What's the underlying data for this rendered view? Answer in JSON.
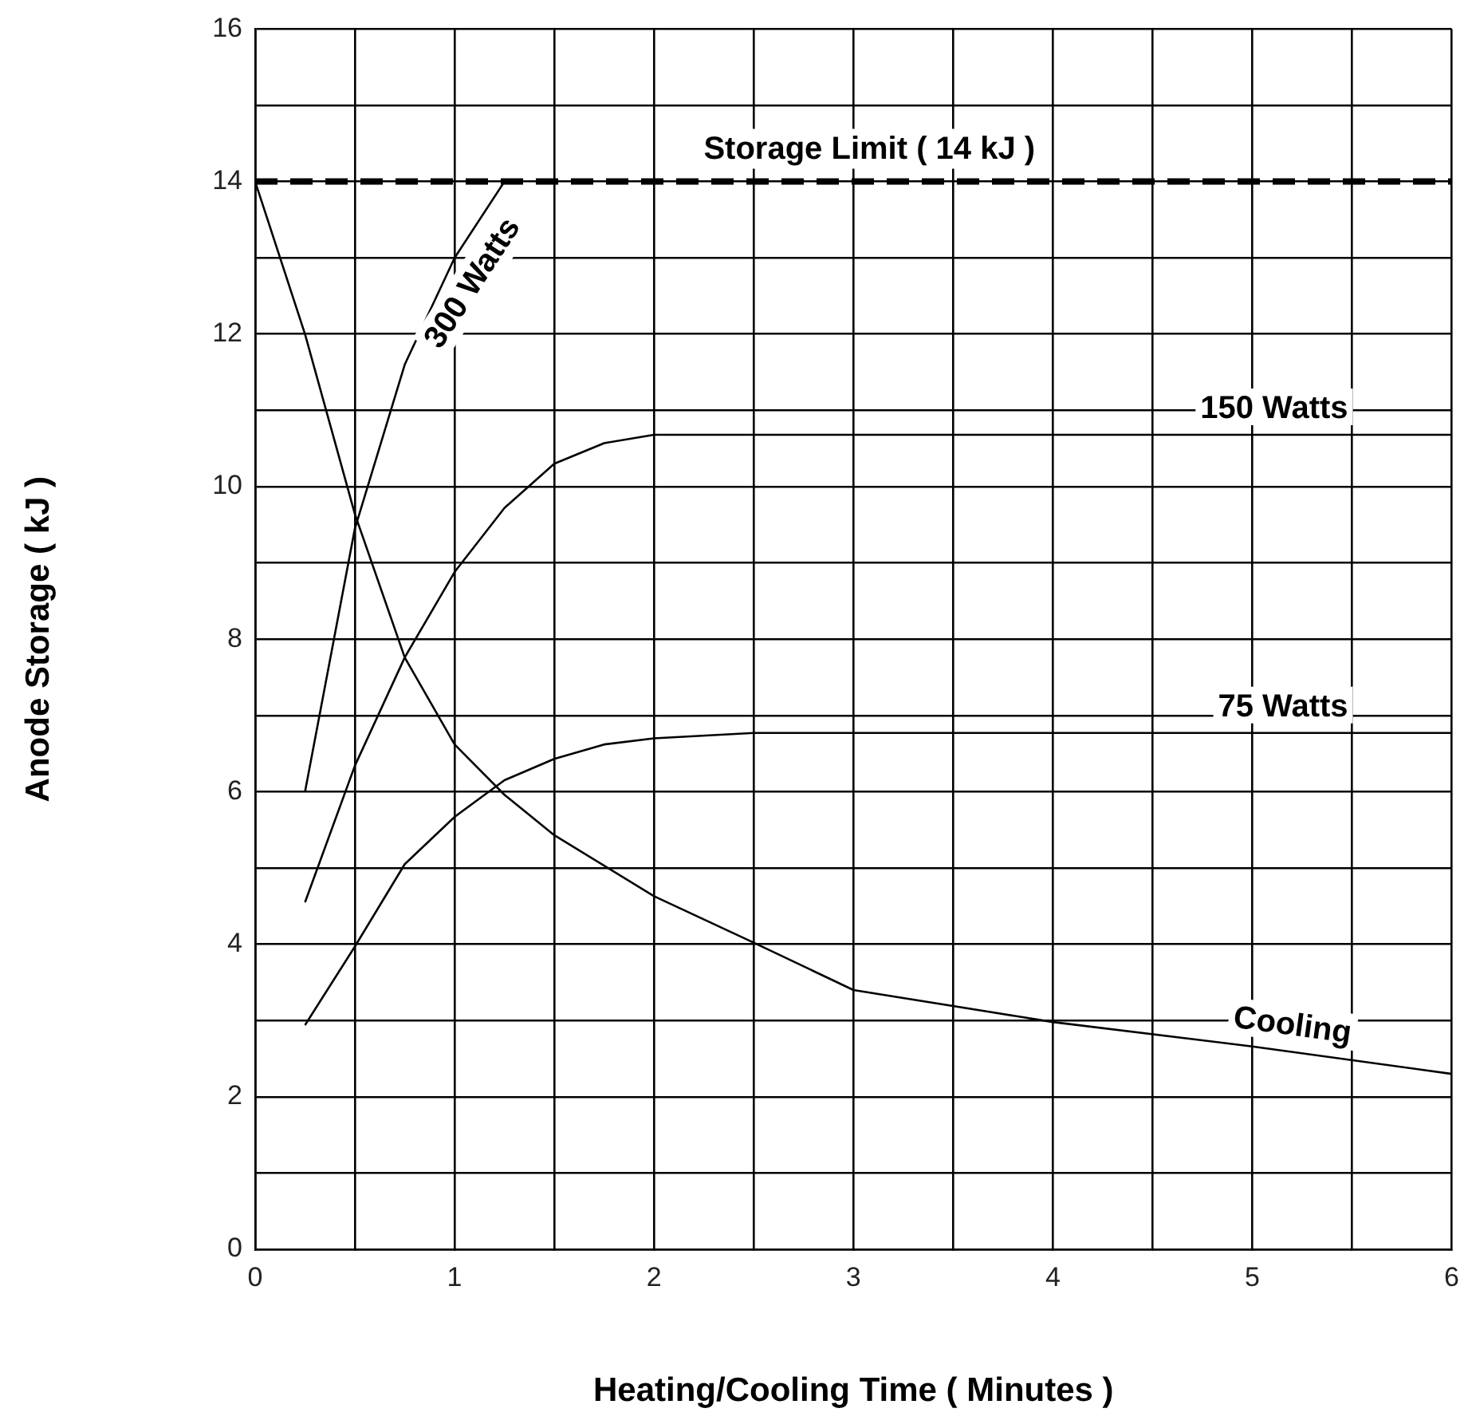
{
  "chart_data": {
    "type": "line",
    "xlabel": "Heating/Cooling Time ( Minutes )",
    "ylabel": "Anode Storage ( kJ )",
    "xlim": [
      0,
      6
    ],
    "xticks": [
      0,
      {
        "value": 0.5,
        "label": null
      },
      1,
      {
        "value": 1.5,
        "label": null
      },
      2,
      {
        "value": 2.5,
        "label": null
      },
      3,
      {
        "value": 3.5,
        "label": null
      },
      4,
      {
        "value": 4.5,
        "label": null
      },
      5,
      {
        "value": 5.5,
        "label": null
      },
      6
    ],
    "ylim": [
      0,
      16
    ],
    "yticks": [
      0,
      {
        "value": 1,
        "label": null
      },
      2,
      {
        "value": 3,
        "label": null
      },
      4,
      {
        "value": 5,
        "label": null
      },
      6,
      {
        "value": 7,
        "label": null
      },
      8,
      {
        "value": 9,
        "label": null
      },
      10,
      {
        "value": 11,
        "label": null
      },
      12,
      {
        "value": 13,
        "label": null
      },
      14,
      {
        "value": 15,
        "label": null
      },
      16
    ],
    "grid": true,
    "legend": false,
    "marker": "none",
    "line_style": "solid",
    "series": [
      {
        "name": "300 Watts",
        "color": "#000000",
        "x": [
          0.25,
          0.5,
          0.75,
          1,
          1.25
        ],
        "values": [
          6.0,
          9.45,
          11.6,
          13.0,
          14.0
        ]
      },
      {
        "name": "150 Watts",
        "color": "#000000",
        "x": [
          0.25,
          0.5,
          0.75,
          1,
          1.25,
          1.5,
          1.75,
          2,
          6
        ],
        "values": [
          4.55,
          6.34,
          7.76,
          8.88,
          9.72,
          10.3,
          10.57,
          10.68,
          10.68
        ]
      },
      {
        "name": "75 Watts",
        "color": "#000000",
        "x": [
          0.25,
          0.5,
          0.75,
          1,
          1.25,
          1.5,
          1.75,
          2,
          2.5,
          6
        ],
        "values": [
          2.94,
          3.97,
          5.05,
          5.67,
          6.15,
          6.43,
          6.62,
          6.7,
          6.77,
          6.77
        ]
      },
      {
        "name": "Cooling",
        "color": "#000000",
        "x": [
          0,
          0.25,
          0.5,
          0.75,
          1,
          1.25,
          1.5,
          2,
          2.5,
          3,
          4,
          5,
          6
        ],
        "values": [
          14.0,
          12.0,
          9.64,
          7.76,
          6.62,
          5.96,
          5.43,
          4.63,
          4.02,
          3.4,
          2.98,
          2.66,
          2.3
        ]
      }
    ],
    "ref_lines": [
      {
        "axis": "y",
        "value": 14,
        "label": "Storage Limit ( 14 kJ )",
        "color": "#000000",
        "line_style": "dashed"
      }
    ]
  }
}
